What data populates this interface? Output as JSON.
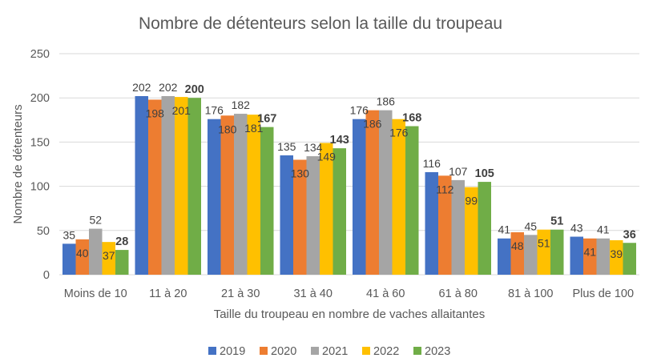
{
  "chart_data": {
    "type": "bar",
    "title": "Nombre de détenteurs selon la taille du troupeau",
    "xlabel": "Taille du troupeau en nombre de vaches allaitantes",
    "ylabel": "Nombre de détenteurs",
    "ylim": [
      0,
      250
    ],
    "yticks": [
      0,
      50,
      100,
      150,
      200,
      250
    ],
    "grid": true,
    "legend_position": "bottom",
    "categories": [
      "Moins de 10",
      "11 à 20",
      "21 à 30",
      "31 à 40",
      "41 à 60",
      "61 à 80",
      "81 à 100",
      "Plus de 100"
    ],
    "series": [
      {
        "name": "2019",
        "color": "#4472c4",
        "values": [
          35,
          202,
          176,
          135,
          176,
          116,
          41,
          43
        ]
      },
      {
        "name": "2020",
        "color": "#ed7d31",
        "values": [
          40,
          198,
          180,
          130,
          186,
          112,
          48,
          41
        ]
      },
      {
        "name": "2021",
        "color": "#a5a5a5",
        "values": [
          52,
          202,
          182,
          134,
          186,
          107,
          45,
          41
        ]
      },
      {
        "name": "2022",
        "color": "#ffc000",
        "values": [
          37,
          201,
          181,
          149,
          176,
          99,
          51,
          39
        ]
      },
      {
        "name": "2023",
        "color": "#70ad47",
        "values": [
          28,
          200,
          167,
          143,
          168,
          105,
          51,
          36
        ]
      }
    ],
    "bold_series": "2023"
  }
}
